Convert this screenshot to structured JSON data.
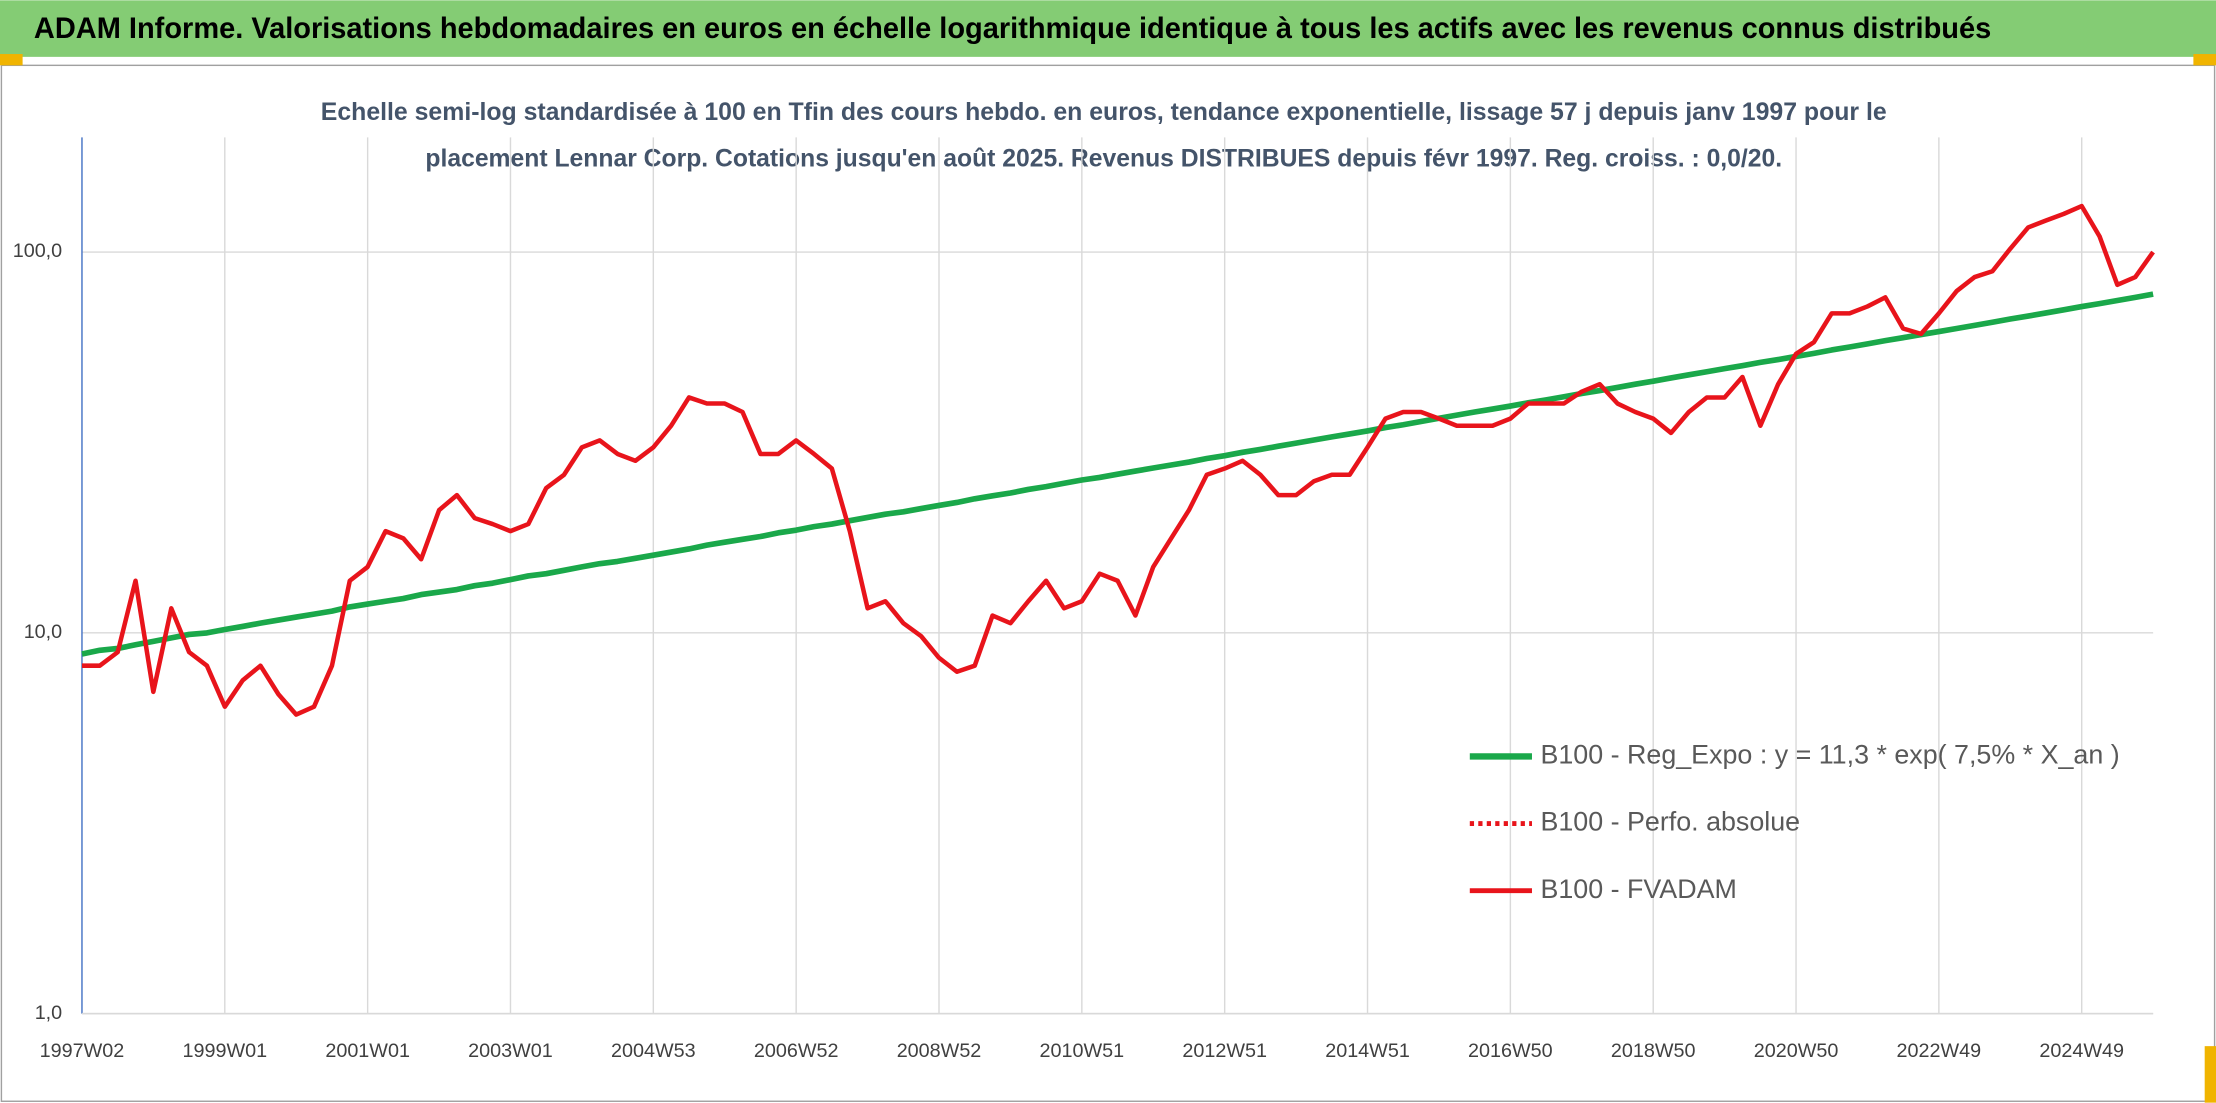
{
  "chart_data": {
    "type": "line",
    "title": "ADAM Informe. Valorisations hebdomadaires en euros en échelle logarithmique identique à tous les actifs avec les revenus connus distribués",
    "subtitle": [
      "Echelle semi-log standardisée à 100 en Tfin des cours hebdo. en euros, tendance exponentielle, lissage 57 j depuis janv 1997 pour le",
      "placement Lennar Corp. Cotations jusqu'en août 2025. Revenus DISTRIBUES depuis févr 1997. Reg. croiss. : 0,0/20."
    ],
    "categories": [
      "1997W02",
      null,
      null,
      null,
      null,
      null,
      null,
      null,
      "1999W01",
      null,
      null,
      null,
      null,
      null,
      null,
      null,
      "2001W01",
      null,
      null,
      null,
      null,
      null,
      null,
      null,
      "2003W01",
      null,
      null,
      null,
      null,
      null,
      null,
      null,
      "2004W53",
      null,
      null,
      null,
      null,
      null,
      null,
      null,
      "2006W52",
      null,
      null,
      null,
      null,
      null,
      null,
      null,
      "2008W52",
      null,
      null,
      null,
      null,
      null,
      null,
      null,
      "2010W51",
      null,
      null,
      null,
      null,
      null,
      null,
      null,
      "2012W51",
      null,
      null,
      null,
      null,
      null,
      null,
      null,
      "2014W51",
      null,
      null,
      null,
      null,
      null,
      null,
      null,
      "2016W50",
      null,
      null,
      null,
      null,
      null,
      null,
      null,
      "2018W50",
      null,
      null,
      null,
      null,
      null,
      null,
      null,
      "2020W50",
      null,
      null,
      null,
      null,
      null,
      null,
      null,
      "2022W49",
      null,
      null,
      null,
      null,
      null,
      null,
      null,
      "2024W49",
      null,
      null,
      null,
      null
    ],
    "series": [
      {
        "name": "B100 - Reg_Expo : y = 11,3 * exp( 7,5% *  X_an )",
        "color": "#1aa84a",
        "dash": "solid",
        "values": [
          8.8,
          9.0,
          9.1,
          9.3,
          9.5,
          9.7,
          9.9,
          10.0,
          10.2,
          10.4,
          10.6,
          10.8,
          11.0,
          11.2,
          11.4,
          11.7,
          11.9,
          12.1,
          12.3,
          12.6,
          12.8,
          13.0,
          13.3,
          13.5,
          13.8,
          14.1,
          14.3,
          14.6,
          14.9,
          15.2,
          15.4,
          15.7,
          16.0,
          16.3,
          16.6,
          17.0,
          17.3,
          17.6,
          17.9,
          18.3,
          18.6,
          19.0,
          19.3,
          19.7,
          20.1,
          20.5,
          20.8,
          21.2,
          21.6,
          22.0,
          22.5,
          22.9,
          23.3,
          23.8,
          24.2,
          24.7,
          25.2,
          25.6,
          26.1,
          26.6,
          27.1,
          27.6,
          28.1,
          28.7,
          29.2,
          29.8,
          30.3,
          30.9,
          31.5,
          32.1,
          32.7,
          33.3,
          33.9,
          34.6,
          35.2,
          35.9,
          36.6,
          37.3,
          38.0,
          38.7,
          39.4,
          40.2,
          40.9,
          41.7,
          42.5,
          43.3,
          44.1,
          45.0,
          45.8,
          46.7,
          47.6,
          48.5,
          49.4,
          50.3,
          51.3,
          52.2,
          53.2,
          54.2,
          55.3,
          56.3,
          57.4,
          58.5,
          59.6,
          60.7,
          61.8,
          63.0,
          64.2,
          65.4,
          66.7,
          67.9,
          69.2,
          70.5,
          71.9,
          73.2,
          74.6,
          76.0,
          77.5
        ]
      },
      {
        "name": "B100 - Perfo. absolue",
        "color": "#e8141b",
        "dash": "dotted"
      },
      {
        "name": "B100 - FVADAM",
        "color": "#e8141b",
        "dash": "solid",
        "values": [
          8.2,
          8.2,
          8.9,
          13.7,
          7.0,
          11.6,
          8.9,
          8.2,
          6.4,
          7.5,
          8.2,
          6.9,
          6.1,
          6.4,
          8.2,
          13.7,
          14.9,
          18.5,
          17.7,
          15.6,
          21,
          23,
          20,
          19.3,
          18.5,
          19.3,
          24,
          26,
          30.7,
          32,
          29.5,
          28.3,
          30.7,
          35,
          41.5,
          40,
          40,
          38,
          29.5,
          29.5,
          32,
          29.5,
          27,
          18.5,
          11.6,
          12.1,
          10.6,
          9.8,
          8.6,
          7.9,
          8.2,
          11.1,
          10.6,
          12.1,
          13.7,
          11.6,
          12.1,
          14.3,
          13.7,
          11.1,
          14.9,
          17.7,
          21,
          26,
          27,
          28.3,
          26,
          23,
          23,
          25,
          26,
          26,
          30.7,
          36.5,
          38,
          38,
          36.5,
          35,
          35,
          35,
          36.5,
          40,
          40,
          40,
          43,
          45,
          40,
          38,
          36.5,
          33.5,
          38,
          41.5,
          41.5,
          47,
          35,
          45,
          54,
          58,
          69,
          69,
          72,
          76,
          63,
          61,
          69,
          79,
          86,
          89,
          102,
          116,
          121,
          126,
          132,
          110,
          82,
          86,
          100
        ]
      }
    ],
    "ylog": true,
    "ylim": [
      1,
      200
    ],
    "yticks": [
      {
        "value": 1,
        "label": "1,0"
      },
      {
        "value": 10,
        "label": "10,0"
      },
      {
        "value": 100,
        "label": "100,0"
      }
    ],
    "grid": true,
    "legend": "lower right"
  }
}
